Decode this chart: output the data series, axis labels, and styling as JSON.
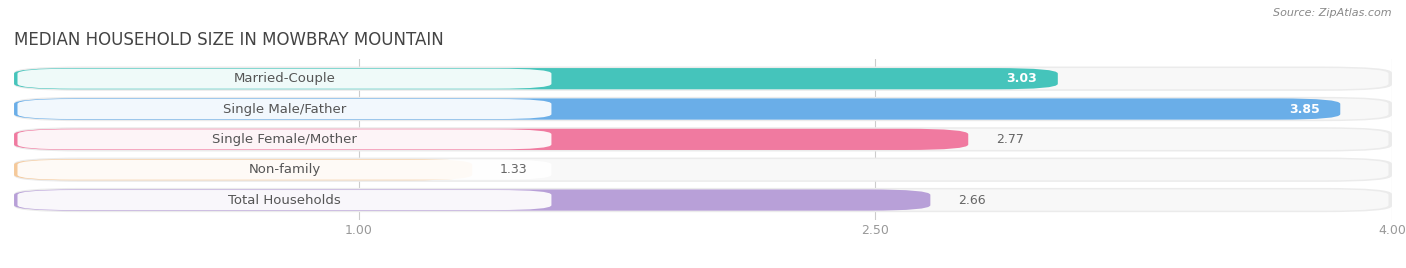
{
  "title": "MEDIAN HOUSEHOLD SIZE IN MOWBRAY MOUNTAIN",
  "source": "Source: ZipAtlas.com",
  "categories": [
    "Married-Couple",
    "Single Male/Father",
    "Single Female/Mother",
    "Non-family",
    "Total Households"
  ],
  "values": [
    3.03,
    3.85,
    2.77,
    1.33,
    2.66
  ],
  "bar_colors": [
    "#45C4BB",
    "#6aaee8",
    "#f07aa0",
    "#f5c99a",
    "#b8a0d8"
  ],
  "background_color": "#f0f0f0",
  "bar_bg_color": "#e8e8e8",
  "xlim": [
    0,
    4.0
  ],
  "xticks": [
    1.0,
    2.5,
    4.0
  ],
  "title_fontsize": 12,
  "label_fontsize": 9.5,
  "value_fontsize": 9,
  "bar_height": 0.72,
  "figsize": [
    14.06,
    2.68
  ],
  "dpi": 100
}
